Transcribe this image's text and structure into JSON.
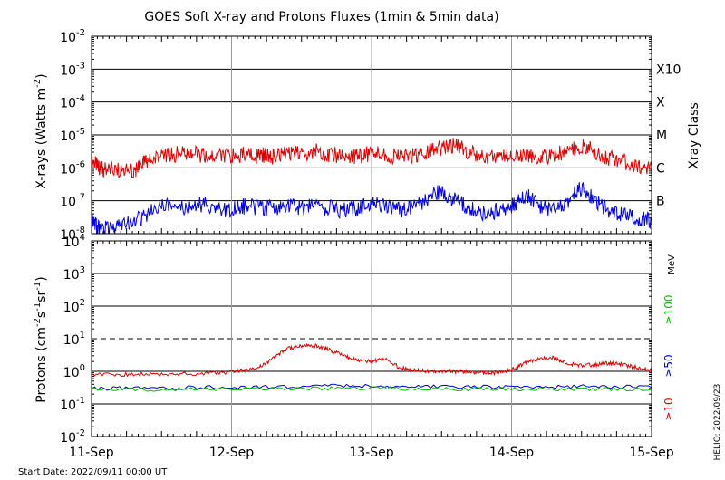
{
  "chart_data": [
    {
      "type": "line",
      "title": "GOES Soft X-ray and Protons Fluxes   (1min & 5min data)",
      "ylabel_main": "X-rays (Watts m",
      "ylabel_sup": "-2",
      "ylabel_end": ")",
      "y_scale": "log",
      "ylim": [
        1e-08,
        0.01
      ],
      "y_ticks": [
        {
          "base": "10",
          "exp": "-8",
          "value": 1e-08
        },
        {
          "base": "10",
          "exp": "-7",
          "value": 1e-07
        },
        {
          "base": "10",
          "exp": "-6",
          "value": 1e-06
        },
        {
          "base": "10",
          "exp": "-5",
          "value": 1e-05
        },
        {
          "base": "10",
          "exp": "-4",
          "value": 0.0001
        },
        {
          "base": "10",
          "exp": "-3",
          "value": 0.001
        },
        {
          "base": "10",
          "exp": "-2",
          "value": 0.01
        }
      ],
      "right_axis_title": "Xray Class",
      "right_labels": [
        {
          "label": "B",
          "value": 1e-07
        },
        {
          "label": "C",
          "value": 1e-06
        },
        {
          "label": "M",
          "value": 1e-05
        },
        {
          "label": "X",
          "value": 0.0001
        },
        {
          "label": "X10",
          "value": 0.001
        }
      ],
      "series": [
        {
          "color": "#dd0000",
          "x": [
            0.0,
            0.05,
            0.1,
            0.2,
            0.3,
            0.35,
            0.4,
            0.5,
            0.6,
            0.7,
            0.8,
            0.9,
            1.0,
            1.1,
            1.2,
            1.25,
            1.3,
            1.4,
            1.5,
            1.6,
            1.7,
            1.8,
            1.9,
            2.0,
            2.1,
            2.2,
            2.3,
            2.4,
            2.5,
            2.6,
            2.7,
            2.8,
            2.9,
            3.0,
            3.1,
            3.2,
            3.3,
            3.4,
            3.5,
            3.6,
            3.7,
            3.8,
            3.9,
            4.0
          ],
          "y": [
            1.8e-06,
            1e-06,
            9e-07,
            8e-07,
            8e-07,
            1.2e-06,
            1.6e-06,
            2.2e-06,
            2.6e-06,
            2.8e-06,
            2.4e-06,
            2.3e-06,
            2.2e-06,
            2.6e-06,
            2.5e-06,
            2.2e-06,
            2.4e-06,
            2.5e-06,
            2.7e-06,
            3.2e-06,
            2.6e-06,
            2.3e-06,
            2.2e-06,
            2.8e-06,
            2.6e-06,
            2e-06,
            2.4e-06,
            3e-06,
            4e-06,
            4.8e-06,
            3e-06,
            2.2e-06,
            2.4e-06,
            2.5e-06,
            2.6e-06,
            2.3e-06,
            2.2e-06,
            3.5e-06,
            5e-06,
            3e-06,
            2e-06,
            1.5e-06,
            1.2e-06,
            1.1e-06
          ]
        },
        {
          "color": "#0000dd",
          "x": [
            0.0,
            0.05,
            0.1,
            0.2,
            0.3,
            0.4,
            0.5,
            0.6,
            0.7,
            0.8,
            0.9,
            1.0,
            1.1,
            1.2,
            1.3,
            1.4,
            1.5,
            1.6,
            1.7,
            1.8,
            1.9,
            2.0,
            2.1,
            2.2,
            2.3,
            2.4,
            2.5,
            2.6,
            2.7,
            2.8,
            2.9,
            3.0,
            3.1,
            3.2,
            3.3,
            3.4,
            3.5,
            3.6,
            3.7,
            3.8,
            3.9,
            4.0
          ],
          "y": [
            2.5e-08,
            1.5e-08,
            1.4e-08,
            1.6e-08,
            2.2e-08,
            4e-08,
            8e-08,
            7e-08,
            6e-08,
            8e-08,
            6e-08,
            5e-08,
            7e-08,
            6e-08,
            6e-08,
            8e-08,
            6e-08,
            7e-08,
            6e-08,
            5e-08,
            6e-08,
            8e-08,
            7e-08,
            5e-08,
            6e-08,
            1.2e-07,
            2e-07,
            1e-07,
            6e-08,
            4e-08,
            5e-08,
            7e-08,
            1.5e-07,
            7e-08,
            5e-08,
            1e-07,
            2.5e-07,
            1e-07,
            5e-08,
            4e-08,
            3e-08,
            2.5e-08
          ]
        }
      ],
      "legend": "none"
    },
    {
      "type": "line",
      "ylabel_main": "Protons (cm",
      "ylabel_sup1": "-2",
      "ylabel_mid1": "s",
      "ylabel_sup2": "-1",
      "ylabel_mid2": "sr",
      "ylabel_sup3": "-1",
      "ylabel_end": ")",
      "y_scale": "log",
      "ylim": [
        0.01,
        10000
      ],
      "y_ticks": [
        {
          "base": "10",
          "exp": "-2",
          "value": 0.01
        },
        {
          "base": "10",
          "exp": "-1",
          "value": 0.1
        },
        {
          "base": "10",
          "exp": "0",
          "value": 1
        },
        {
          "base": "10",
          "exp": "1",
          "value": 10
        },
        {
          "base": "10",
          "exp": "2",
          "value": 100
        },
        {
          "base": "10",
          "exp": "3",
          "value": 1000
        },
        {
          "base": "10",
          "exp": "4",
          "value": 10000
        }
      ],
      "right_axis_title": "MeV",
      "right_labels": [
        {
          "label": "≥100",
          "color": "#00bb00"
        },
        {
          "label": "≥50",
          "color": "#0000cc"
        },
        {
          "label": "≥10",
          "color": "#dd0000"
        }
      ],
      "threshold_value": 10,
      "series": [
        {
          "label": "≥10",
          "color": "#dd0000",
          "x": [
            0.0,
            0.2,
            0.4,
            0.6,
            0.8,
            1.0,
            1.1,
            1.2,
            1.3,
            1.4,
            1.5,
            1.6,
            1.7,
            1.8,
            1.9,
            2.0,
            2.1,
            2.2,
            2.3,
            2.4,
            2.5,
            2.6,
            2.7,
            2.8,
            2.9,
            3.0,
            3.1,
            3.2,
            3.3,
            3.4,
            3.5,
            3.6,
            3.7,
            3.8,
            3.9,
            4.0
          ],
          "y": [
            0.8,
            0.8,
            0.8,
            0.85,
            0.85,
            0.95,
            1.1,
            1.4,
            2.5,
            5.0,
            6.0,
            6.0,
            4.5,
            3.0,
            2.2,
            2.0,
            2.5,
            1.3,
            1.1,
            1.0,
            1.0,
            1.0,
            0.95,
            0.9,
            0.9,
            1.1,
            1.8,
            2.5,
            2.6,
            1.7,
            1.5,
            1.6,
            1.8,
            1.6,
            1.3,
            1.1
          ]
        },
        {
          "label": "≥50",
          "color": "#0000cc",
          "x": [
            0.0,
            0.4,
            0.8,
            1.2,
            1.6,
            2.0,
            2.4,
            2.8,
            3.2,
            3.6,
            4.0
          ],
          "y": [
            0.3,
            0.3,
            0.32,
            0.33,
            0.35,
            0.36,
            0.34,
            0.33,
            0.34,
            0.34,
            0.32
          ]
        },
        {
          "label": "≥100",
          "color": "#00bb00",
          "x": [
            0.0,
            0.4,
            0.8,
            1.2,
            1.6,
            2.0,
            2.4,
            2.8,
            3.2,
            3.6,
            4.0
          ],
          "y": [
            0.28,
            0.27,
            0.28,
            0.28,
            0.3,
            0.31,
            0.29,
            0.28,
            0.29,
            0.29,
            0.28
          ]
        }
      ],
      "legend": "right"
    }
  ],
  "x_axis": {
    "ticks": [
      {
        "label": "11-Sep",
        "value": 0
      },
      {
        "label": "12-Sep",
        "value": 1
      },
      {
        "label": "13-Sep",
        "value": 2
      },
      {
        "label": "14-Sep",
        "value": 3
      },
      {
        "label": "15-Sep",
        "value": 4
      }
    ],
    "xlim": [
      0,
      4
    ]
  },
  "footer": {
    "start_date": "Start Date: 2022/09/11 00:00 UT",
    "helio": "HELIO: 2022/09/23"
  }
}
